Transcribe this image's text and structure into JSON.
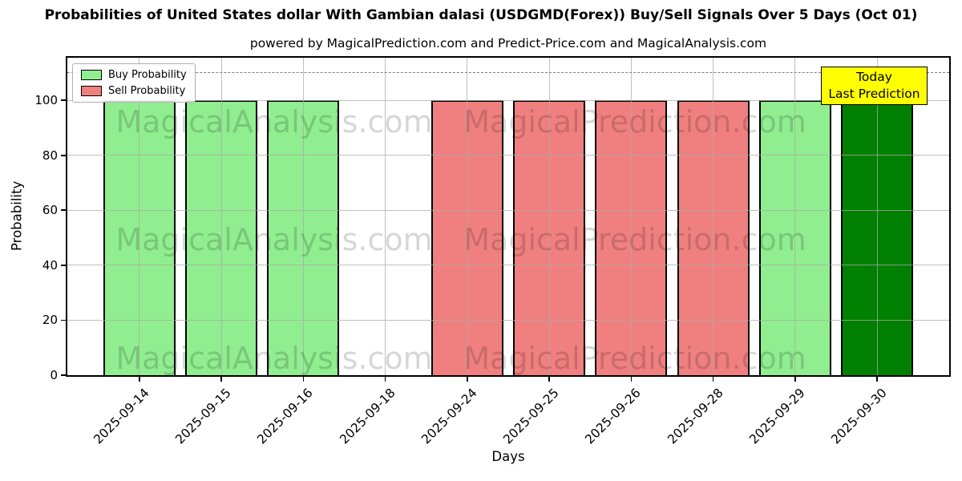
{
  "chart_data": {
    "type": "bar",
    "title": "Probabilities of United States dollar With Gambian dalasi (USDGMD(Forex)) Buy/Sell Signals Over 5 Days (Oct 01)",
    "subtitle": "powered by MagicalPrediction.com and Predict-Price.com and MagicalAnalysis.com",
    "xlabel": "Days",
    "ylabel": "Probability",
    "categories": [
      "2025-09-14",
      "2025-09-15",
      "2025-09-16",
      "2025-09-18",
      "2025-09-24",
      "2025-09-25",
      "2025-09-26",
      "2025-09-28",
      "2025-09-29",
      "2025-09-30"
    ],
    "values": [
      100,
      100,
      100,
      0,
      100,
      100,
      100,
      100,
      100,
      100
    ],
    "bar_kinds": [
      "buy",
      "buy",
      "buy",
      "none",
      "sell",
      "sell",
      "sell",
      "sell",
      "buy",
      "today"
    ],
    "colors": {
      "buy": "#90EE90",
      "sell": "#F08080",
      "today": "#008000"
    },
    "ylim": [
      0,
      115.5
    ],
    "yticks": [
      0,
      20,
      40,
      60,
      80,
      100
    ],
    "grid": true,
    "dashed_line_y": 110,
    "legend": {
      "position": "upper-left",
      "items": [
        {
          "label": "Buy Probability",
          "color": "#90EE90"
        },
        {
          "label": "Sell Probability",
          "color": "#F08080"
        }
      ]
    },
    "annotation": {
      "lines": [
        "Today",
        "Last Prediction"
      ],
      "bg": "#FFFF00"
    },
    "watermark_texts": [
      "MagicalAnalysis.com",
      "MagicalPrediction.com"
    ]
  }
}
